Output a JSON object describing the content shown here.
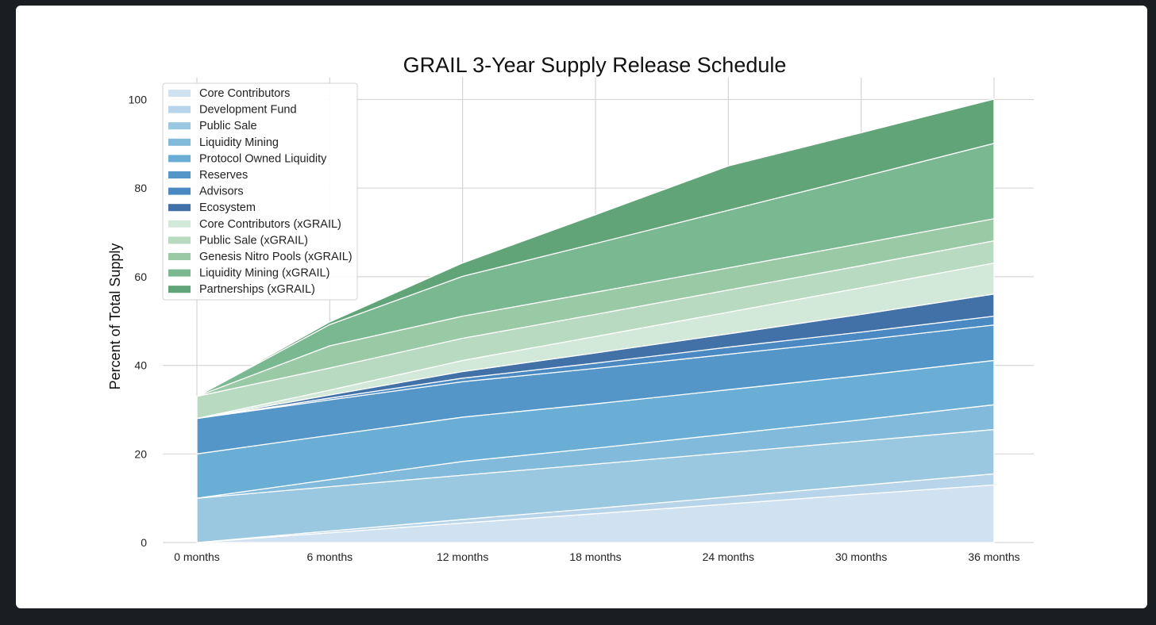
{
  "chart_data": {
    "type": "area",
    "stacked": true,
    "title": "GRAIL 3-Year Supply Release Schedule",
    "xlabel": "",
    "ylabel": "Percent of Total Supply",
    "categories": [
      "0 months",
      "6 months",
      "12 months",
      "18 months",
      "24 months",
      "30 months",
      "36 months"
    ],
    "ylim": [
      0,
      105
    ],
    "yticks": [
      0,
      20,
      40,
      60,
      80,
      100
    ],
    "grid": true,
    "legend_position": "upper-left",
    "series": [
      {
        "name": "Core Contributors",
        "color": "#d0e1f2",
        "values": [
          0,
          2.2,
          4.4,
          6.5,
          8.7,
          10.9,
          13.0
        ]
      },
      {
        "name": "Development Fund",
        "color": "#b7d4ea",
        "values": [
          0,
          0.4,
          0.8,
          1.2,
          1.6,
          2.0,
          2.5
        ]
      },
      {
        "name": "Public Sale",
        "color": "#9ac8e0",
        "values": [
          10,
          10,
          10,
          10,
          10,
          10,
          10
        ]
      },
      {
        "name": "Liquidity Mining",
        "color": "#82badb",
        "values": [
          0,
          1.6,
          3.1,
          3.6,
          4.2,
          4.8,
          5.6
        ]
      },
      {
        "name": "Protocol Owned Liquidity",
        "color": "#6aaed6",
        "values": [
          10,
          10,
          10,
          10,
          10,
          10,
          10
        ]
      },
      {
        "name": "Reserves",
        "color": "#5596c9",
        "values": [
          8,
          8,
          8,
          8,
          8,
          8,
          8
        ]
      },
      {
        "name": "Advisors",
        "color": "#4a89c2",
        "values": [
          0,
          0.4,
          0.8,
          1.2,
          1.6,
          1.8,
          2.0
        ]
      },
      {
        "name": "Ecosystem",
        "color": "#4271a8",
        "values": [
          0,
          0.7,
          1.5,
          2.3,
          3.0,
          4.0,
          5.0
        ]
      },
      {
        "name": "Core Contributors (xGRAIL)",
        "color": "#d2e8d8",
        "values": [
          0,
          1.1,
          2.5,
          3.7,
          4.9,
          6.0,
          7.0
        ]
      },
      {
        "name": "Public Sale (xGRAIL)",
        "color": "#b8dac0",
        "values": [
          5,
          5,
          5,
          5,
          5,
          5,
          5
        ]
      },
      {
        "name": "Genesis Nitro Pools (xGRAIL)",
        "color": "#99c9a5",
        "values": [
          0,
          5.0,
          5.0,
          5.0,
          5.0,
          5.0,
          5.0
        ]
      },
      {
        "name": "Liquidity Mining (xGRAIL)",
        "color": "#7ab892",
        "values": [
          0,
          4.8,
          9.0,
          11.0,
          13.0,
          15.0,
          17.0
        ]
      },
      {
        "name": "Partnerships (xGRAIL)",
        "color": "#60a478",
        "values": [
          0,
          0.6,
          3.0,
          6.5,
          10.0,
          10.0,
          10.0
        ]
      }
    ]
  }
}
